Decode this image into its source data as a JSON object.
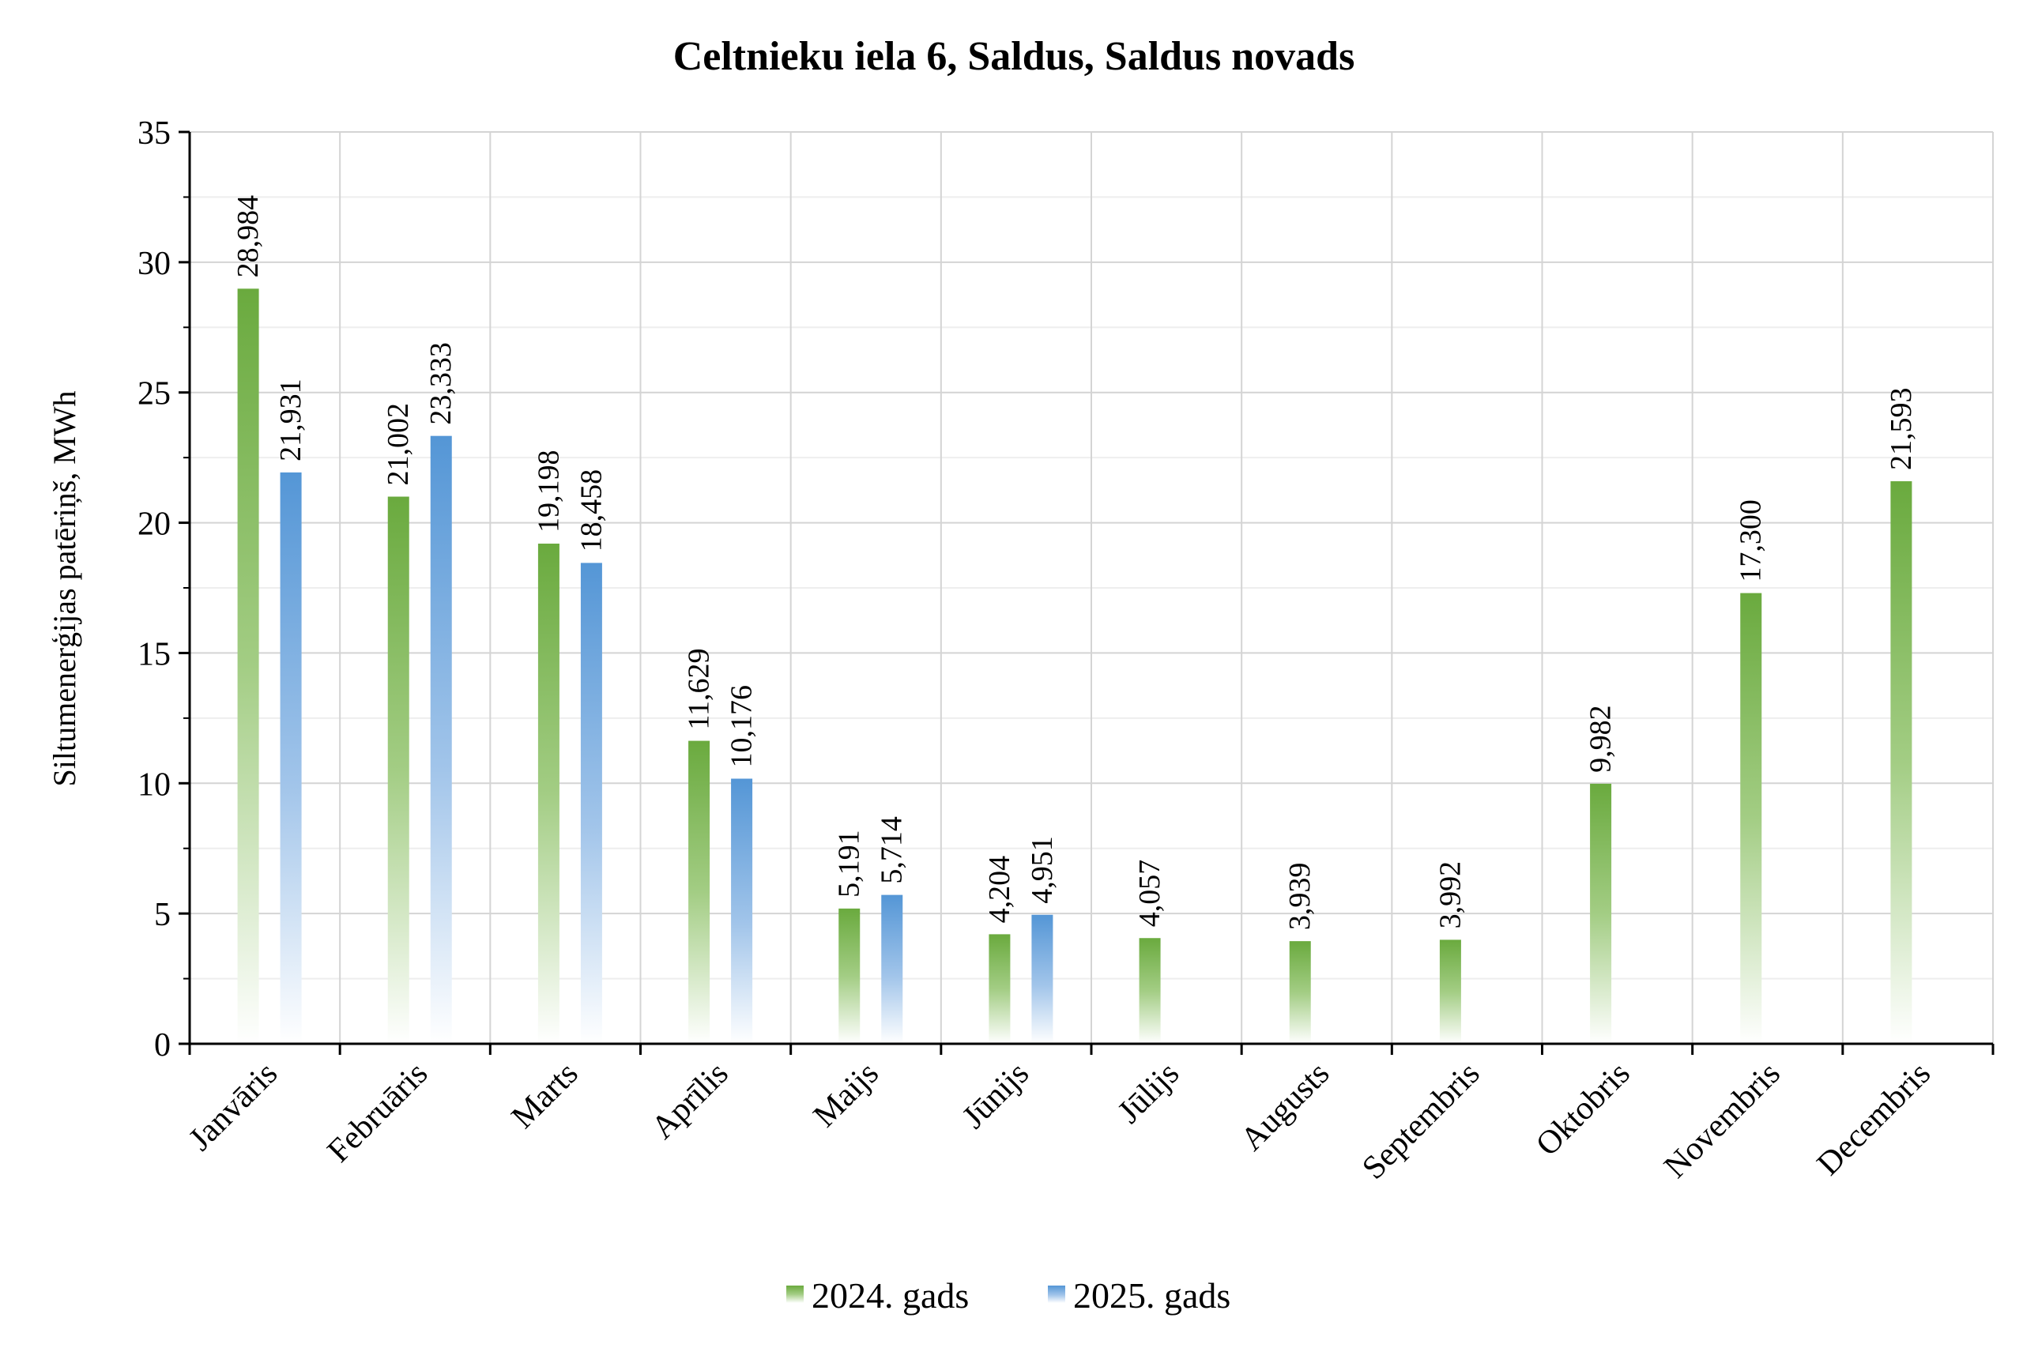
{
  "chart_data": {
    "type": "bar",
    "title": "Celtnieku iela 6, Saldus, Saldus novads",
    "ylabel": "Siltumenerģijas patēriņš, MWh",
    "xlabel": "",
    "ylim": [
      0,
      35
    ],
    "yticks": [
      0,
      5,
      10,
      15,
      20,
      25,
      30,
      35
    ],
    "ytick_labels": [
      "0",
      "5",
      "10",
      "15",
      "20",
      "25",
      "30",
      "35"
    ],
    "grid": true,
    "legend_position": "bottom-center",
    "categories": [
      "Janvāris",
      "Februāris",
      "Marts",
      "Aprīlis",
      "Maijs",
      "Jūnijs",
      "Jūlijs",
      "Augusts",
      "Septembris",
      "Oktobris",
      "Novembris",
      "Decembris"
    ],
    "series": [
      {
        "name": "2024. gads",
        "color": "#70ad47",
        "values": [
          28.984,
          21.002,
          19.198,
          11.629,
          5.191,
          4.204,
          4.057,
          3.939,
          3.992,
          9.982,
          17.3,
          21.593
        ],
        "labels": [
          "28,984",
          "21,002",
          "19,198",
          "11,629",
          "5,191",
          "4,204",
          "4,057",
          "3,939",
          "3,992",
          "9,982",
          "17,300",
          "21,593"
        ]
      },
      {
        "name": "2025. gads",
        "color": "#5b9bd5",
        "values": [
          21.931,
          23.333,
          18.458,
          10.176,
          5.714,
          4.951,
          null,
          null,
          null,
          null,
          null,
          null
        ],
        "labels": [
          "21,931",
          "23,333",
          "18,458",
          "10,176",
          "5,714",
          "4,951",
          null,
          null,
          null,
          null,
          null,
          null
        ]
      }
    ]
  }
}
